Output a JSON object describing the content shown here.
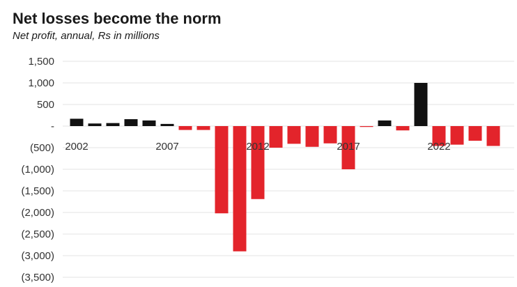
{
  "header": {
    "title": "Net losses become the norm",
    "subtitle": "Net profit, annual, Rs in millions"
  },
  "colors": {
    "positive": "#111111",
    "negative": "#e3242b",
    "grid": "#e3e3e3"
  },
  "chart_data": {
    "type": "bar",
    "title": "Net losses become the norm",
    "subtitle": "Net profit, annual, Rs in millions",
    "xlabel": "",
    "ylabel": "",
    "ylim": [
      -3500,
      1500
    ],
    "yticks": [
      1500,
      1000,
      500,
      0,
      -500,
      -1000,
      -1500,
      -2000,
      -2500,
      -3000,
      -3500
    ],
    "ytick_labels": [
      "1,500",
      "1,000",
      "500",
      "-",
      "(500)",
      "(1,000)",
      "(1,500)",
      "(2,000)",
      "(2,500)",
      "(3,000)",
      "(3,500)"
    ],
    "x_tick_labels": [
      {
        "year": 2002,
        "label": "2002"
      },
      {
        "year": 2007,
        "label": "2007"
      },
      {
        "year": 2012,
        "label": "2012"
      },
      {
        "year": 2017,
        "label": "2017"
      },
      {
        "year": 2022,
        "label": "2022"
      }
    ],
    "grid": true,
    "legend": "none",
    "categories": [
      2002,
      2003,
      2004,
      2005,
      2006,
      2007,
      2008,
      2009,
      2010,
      2011,
      2012,
      2013,
      2014,
      2015,
      2016,
      2017,
      2018,
      2019,
      2020,
      2021,
      2022,
      2023,
      2024,
      2025
    ],
    "values": [
      170,
      60,
      70,
      160,
      130,
      50,
      -90,
      -90,
      -2020,
      -2900,
      -1690,
      -500,
      -410,
      -480,
      -400,
      -1000,
      -20,
      130,
      -100,
      1000,
      -460,
      -430,
      -340,
      -460
    ]
  }
}
